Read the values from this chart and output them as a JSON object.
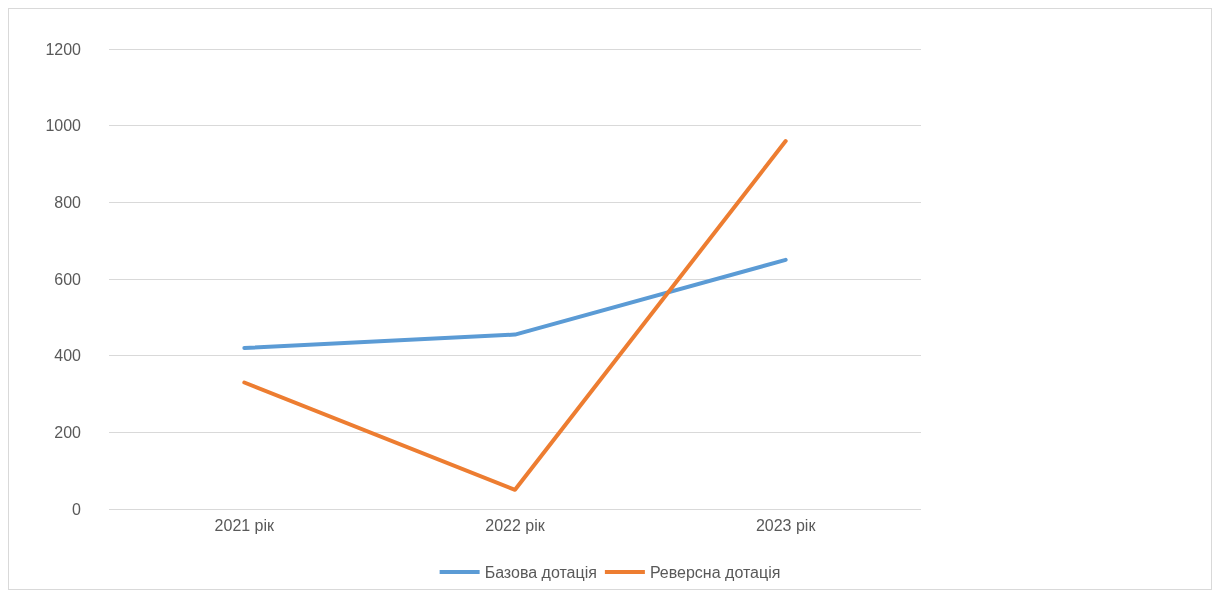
{
  "chart_data": {
    "type": "line",
    "categories": [
      "2021 рік",
      "2022 рік",
      "2023 рік"
    ],
    "series": [
      {
        "name": "Базова дотація",
        "color": "#5b9bd5",
        "values": [
          420,
          455,
          650
        ]
      },
      {
        "name": "Реверсна дотація",
        "color": "#ed7d31",
        "values": [
          330,
          50,
          960
        ]
      }
    ],
    "ylim": [
      0,
      1200
    ],
    "yticks": [
      0,
      200,
      400,
      600,
      800,
      1000,
      1200
    ],
    "grid": "y",
    "legend": "bottom",
    "marker": "none",
    "line_style": "solid"
  }
}
